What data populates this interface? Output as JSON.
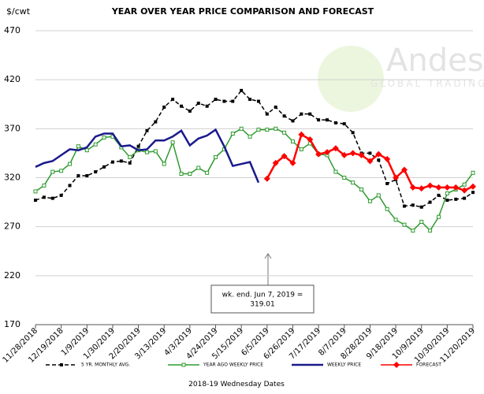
{
  "chart_data": {
    "type": "line",
    "title": "YEAR OVER YEAR PRICE COMPARISON AND FORECAST",
    "y_label": "$/cwt",
    "x_label": "2018-19 Wednesday Dates",
    "watermark": [
      "Andes",
      "GLOBAL TRADING"
    ],
    "annotation": [
      "wk. end. Jun 7, 2019 =",
      "319.01"
    ],
    "categories": [
      "11/28/2018",
      null,
      null,
      "12/19/2018",
      null,
      null,
      "1/9/2019",
      null,
      null,
      "1/30/2019",
      null,
      null,
      "2/20/2019",
      null,
      null,
      "3/13/2019",
      null,
      null,
      "4/3/2019",
      null,
      null,
      "4/24/2019",
      null,
      null,
      "5/15/2019",
      null,
      null,
      "6/5/2019",
      null,
      null,
      "6/26/2019",
      null,
      null,
      "7/17/2019",
      null,
      null,
      "8/7/2019",
      null,
      null,
      "8/28/2019",
      null,
      null,
      "9/18/2019",
      null,
      null,
      "10/9/2019",
      null,
      null,
      "10/30/2019",
      null,
      null,
      "11/20/2019"
    ],
    "ylim": [
      170,
      470
    ],
    "yticks": [
      170,
      220,
      270,
      320,
      370,
      420,
      470
    ],
    "grid": true,
    "series": [
      {
        "name": "5 YR. MONTHLY AVG.",
        "color": "#000000",
        "dash": true,
        "marker": "square",
        "values": [
          297,
          300,
          299,
          302,
          312,
          322,
          322,
          326,
          331,
          336,
          337,
          335,
          352,
          368,
          377,
          392,
          400,
          393,
          388,
          396,
          393,
          400,
          398,
          398,
          409,
          400,
          398,
          385,
          392,
          383,
          378,
          385,
          385,
          379,
          379,
          376,
          375,
          366,
          345,
          345,
          338,
          314,
          318,
          291,
          292,
          290,
          295,
          302,
          297,
          298,
          299,
          305
        ]
      },
      {
        "name": "YEAR AGO WEEKLY PRICE",
        "color": "#2e9b2e",
        "dash": false,
        "marker": "open-square",
        "values": [
          306,
          312,
          326,
          327,
          334,
          352,
          348,
          354,
          361,
          362,
          351,
          341,
          348,
          346,
          347,
          334,
          356,
          324,
          324,
          330,
          325,
          341,
          349,
          365,
          370,
          362,
          369,
          369,
          370,
          366,
          357,
          349,
          355,
          344,
          343,
          326,
          320,
          315,
          308,
          296,
          302,
          288,
          277,
          272,
          266,
          275,
          266,
          280,
          304,
          308,
          313,
          325
        ]
      },
      {
        "name": "WEEKLY PRICE",
        "color": "#1a1a8c",
        "dash": false,
        "marker": "none",
        "values": [
          331,
          335,
          337,
          343,
          349,
          348,
          351,
          362,
          365,
          365,
          352,
          353,
          348,
          349,
          358,
          358,
          362,
          368,
          353,
          360,
          363,
          369,
          352,
          332,
          334,
          336,
          315,
          null,
          null,
          null,
          null,
          null,
          null,
          null,
          null,
          null,
          null,
          null,
          null,
          null,
          null,
          null,
          null,
          null,
          null,
          null,
          null,
          null,
          null,
          null,
          null,
          null
        ]
      },
      {
        "name": "FORECAST",
        "color": "#ff0000",
        "dash": false,
        "marker": "diamond",
        "values": [
          null,
          null,
          null,
          null,
          null,
          null,
          null,
          null,
          null,
          null,
          null,
          null,
          null,
          null,
          null,
          null,
          null,
          null,
          null,
          null,
          null,
          null,
          null,
          null,
          null,
          null,
          null,
          319.01,
          335,
          342,
          335,
          364,
          359,
          344,
          346,
          350,
          343,
          345,
          343,
          337,
          344,
          339,
          320,
          328,
          310,
          309,
          312,
          310,
          310,
          310,
          307,
          311
        ]
      }
    ]
  }
}
